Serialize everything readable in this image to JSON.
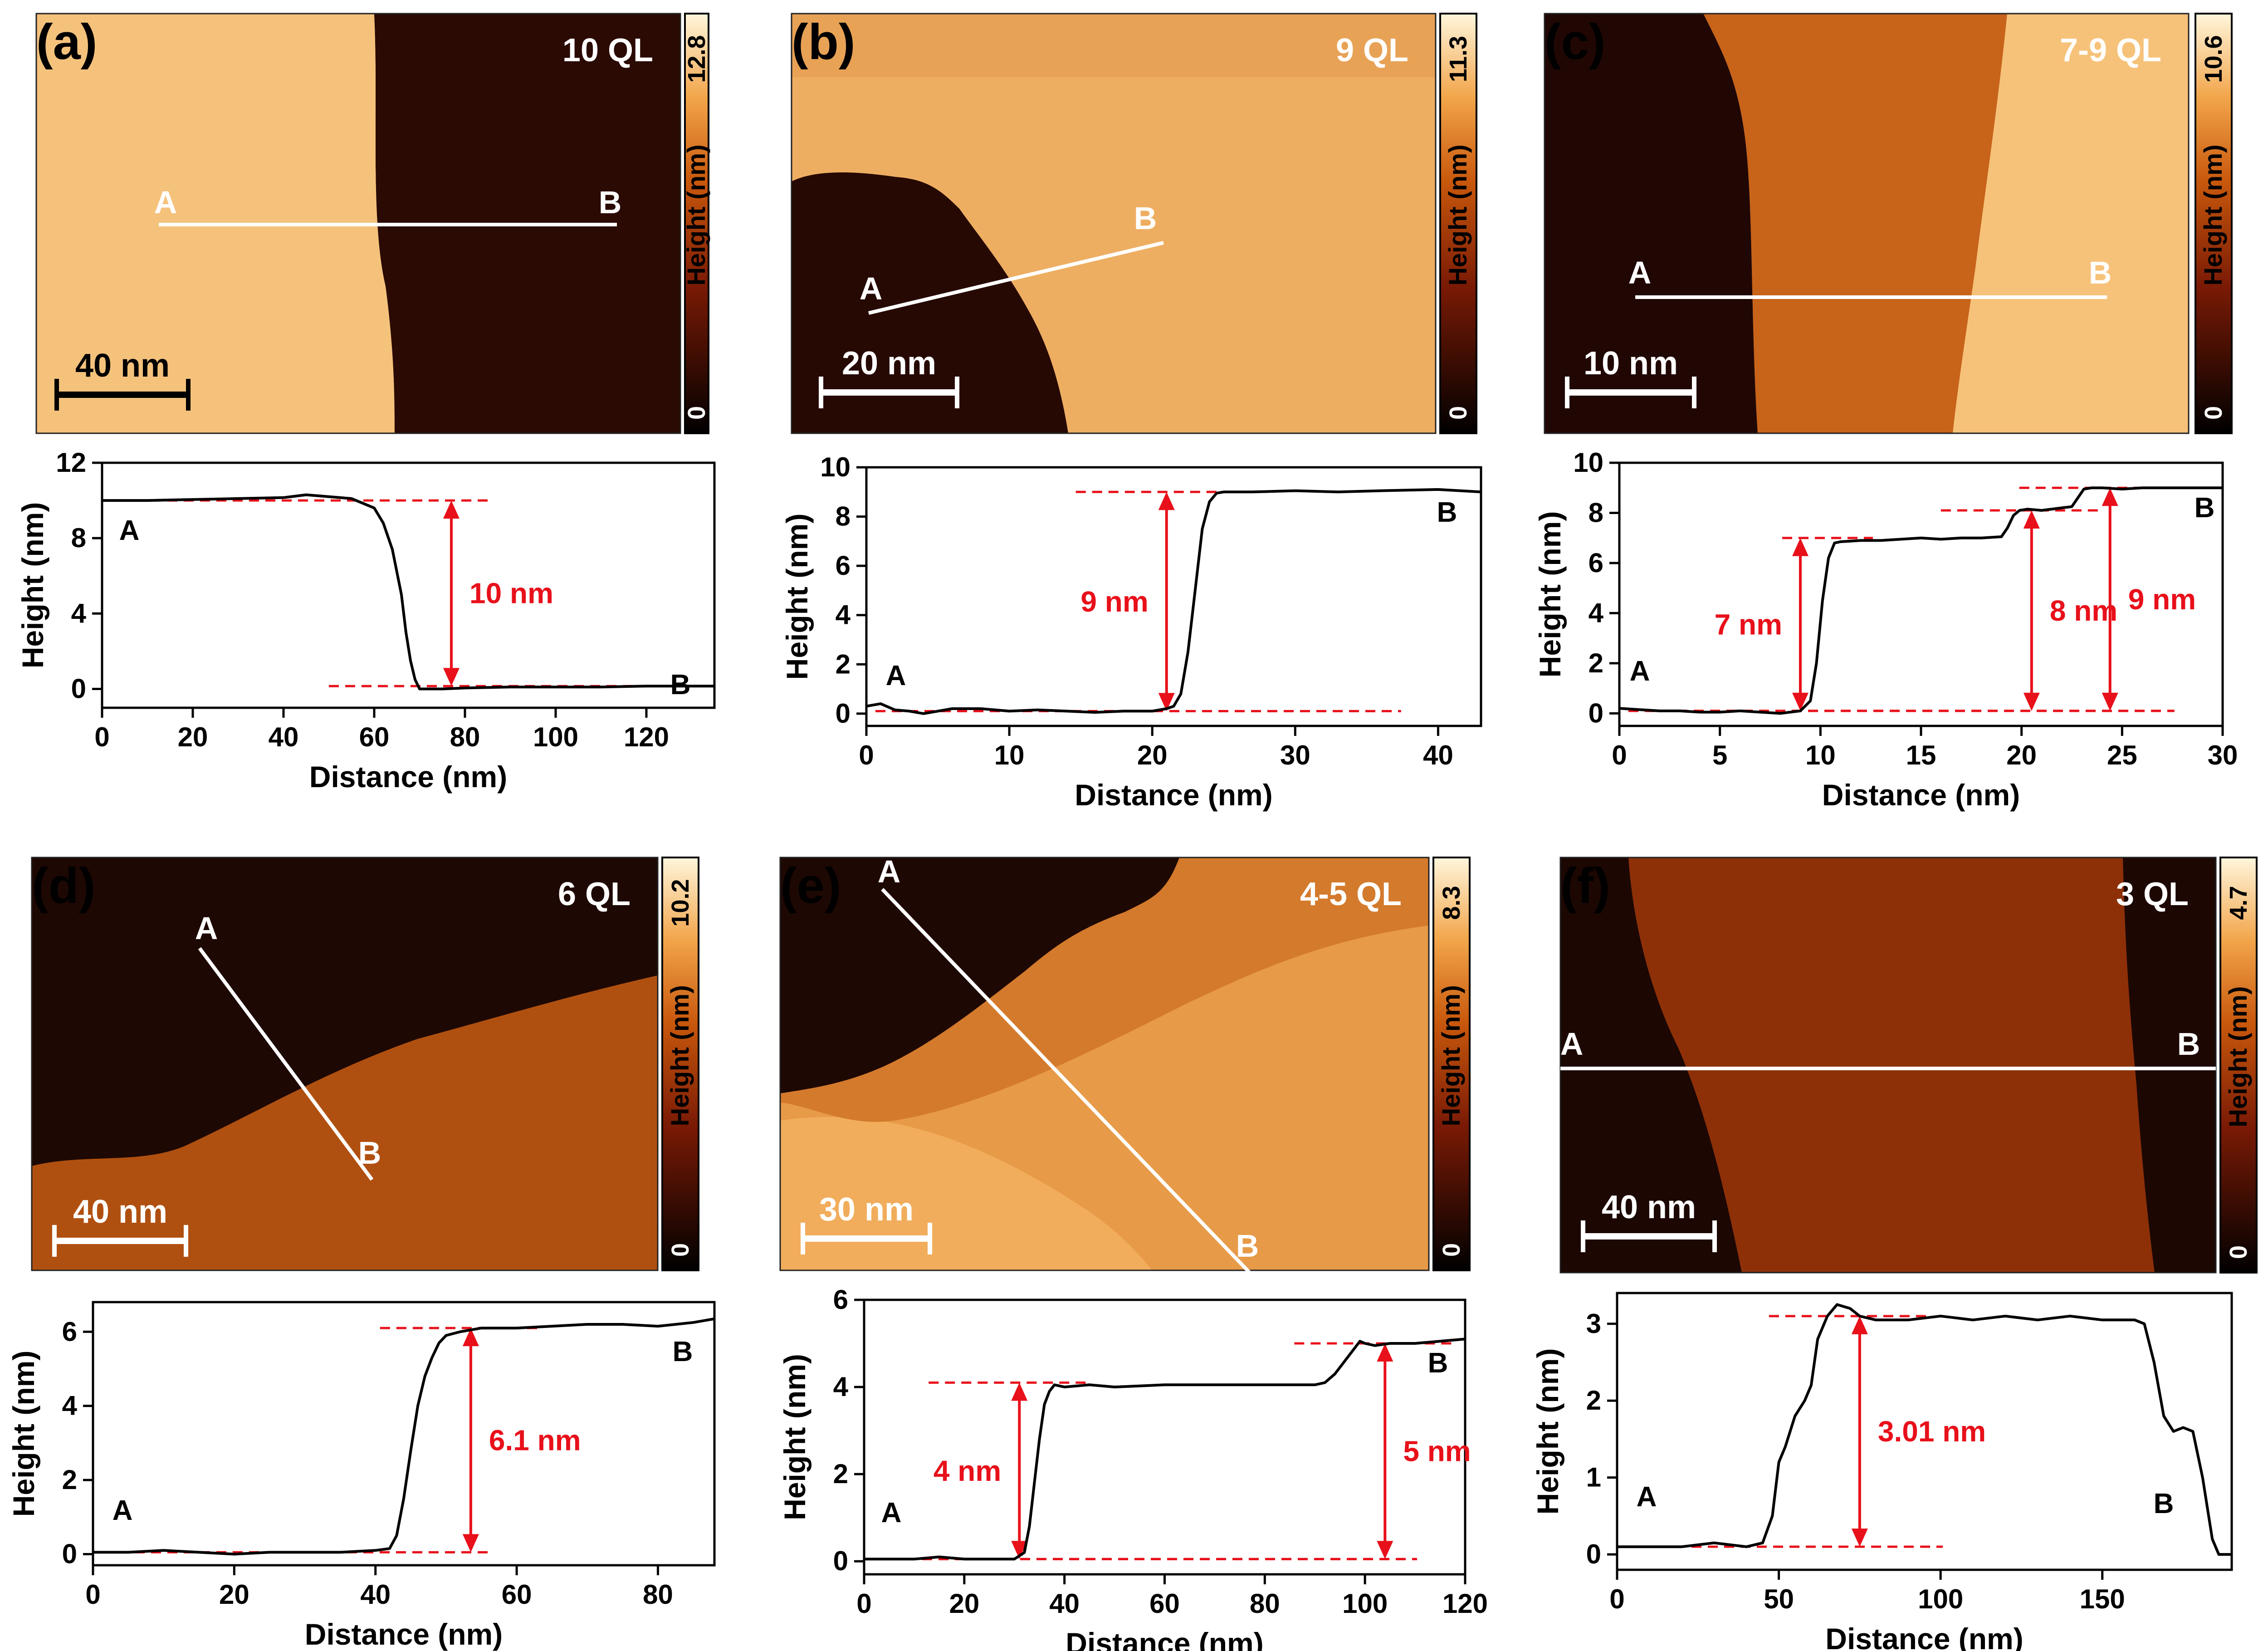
{
  "panels": [
    {
      "id": "a",
      "label": "(a)",
      "title": "10 QL",
      "scale_max": "12.8",
      "scale_min": "0",
      "colorbar_label": "Height (nm)",
      "scalebar": "40 nm",
      "pointA": "A",
      "pointB": "B"
    },
    {
      "id": "b",
      "label": "(b)",
      "title": "9 QL",
      "scale_max": "11.3",
      "scale_min": "0",
      "colorbar_label": "Height (nm)",
      "scalebar": "20 nm",
      "pointA": "A",
      "pointB": "B"
    },
    {
      "id": "c",
      "label": "(c)",
      "title": "7-9 QL",
      "scale_max": "10.6",
      "scale_min": "0",
      "colorbar_label": "Height (nm)",
      "scalebar": "10 nm",
      "pointA": "A",
      "pointB": "B"
    },
    {
      "id": "d",
      "label": "(d)",
      "title": "6 QL",
      "scale_max": "10.2",
      "scale_min": "0",
      "colorbar_label": "Height (nm)",
      "scalebar": "40 nm",
      "pointA": "A",
      "pointB": "B"
    },
    {
      "id": "e",
      "label": "(e)",
      "title": "4-5 QL",
      "scale_max": "8.3",
      "scale_min": "0",
      "colorbar_label": "Height (nm)",
      "scalebar": "30 nm",
      "pointA": "A",
      "pointB": "B"
    },
    {
      "id": "f",
      "label": "(f)",
      "title": "3 QL",
      "scale_max": "4.7",
      "scale_min": "0",
      "colorbar_label": "Height (nm)",
      "scalebar": "40 nm",
      "pointA": "A",
      "pointB": "B"
    }
  ],
  "chart_data": [
    {
      "id": "a",
      "type": "line",
      "xlabel": "Distance (nm)",
      "ylabel": "Height (nm)",
      "xlim": [
        0,
        135
      ],
      "ylim": [
        -1,
        12
      ],
      "xticks": [
        0,
        20,
        40,
        60,
        80,
        100,
        120
      ],
      "yticks": [
        0,
        4,
        8,
        12
      ],
      "x": [
        0,
        10,
        20,
        30,
        40,
        45,
        50,
        55,
        60,
        62,
        64,
        66,
        67,
        68,
        69,
        70,
        72,
        75,
        80,
        90,
        100,
        110,
        120,
        130,
        135
      ],
      "y": [
        10,
        10,
        10.05,
        10.1,
        10.15,
        10.3,
        10.2,
        10.1,
        9.6,
        8.8,
        7.4,
        5.0,
        3.0,
        1.5,
        0.5,
        0,
        0,
        0,
        0.05,
        0.1,
        0.1,
        0.1,
        0.15,
        0.15,
        0.15
      ],
      "start_label": "A",
      "end_label": "B",
      "annotations": [
        {
          "text": "10 nm",
          "x": 77,
          "y_low": 0.15,
          "y_high": 10
        }
      ]
    },
    {
      "id": "b",
      "type": "line",
      "xlabel": "Distance (nm)",
      "ylabel": "Height (nm)",
      "xlim": [
        0,
        43
      ],
      "ylim": [
        -0.5,
        10
      ],
      "xticks": [
        0,
        10,
        20,
        30,
        40
      ],
      "yticks": [
        0,
        2,
        4,
        6,
        8,
        10
      ],
      "x": [
        0,
        1,
        2,
        3,
        4,
        5,
        6,
        8,
        10,
        12,
        14,
        16,
        18,
        20,
        21,
        21.5,
        22,
        22.5,
        23,
        23.5,
        24,
        24.5,
        25,
        27,
        30,
        33,
        36,
        40,
        43
      ],
      "y": [
        0.3,
        0.4,
        0.15,
        0.1,
        0.0,
        0.1,
        0.2,
        0.2,
        0.1,
        0.15,
        0.1,
        0.05,
        0.1,
        0.1,
        0.2,
        0.3,
        0.8,
        2.5,
        5.0,
        7.5,
        8.6,
        8.95,
        9.0,
        9.0,
        9.05,
        9.0,
        9.05,
        9.1,
        9.0
      ],
      "start_label": "A",
      "end_label": "B",
      "annotations": [
        {
          "text": "9 nm",
          "x": 21,
          "y_low": 0.1,
          "y_high": 9
        }
      ]
    },
    {
      "id": "c",
      "type": "line",
      "xlabel": "Distance (nm)",
      "ylabel": "Height (nm)",
      "xlim": [
        0,
        30
      ],
      "ylim": [
        -0.5,
        10
      ],
      "xticks": [
        0,
        5,
        10,
        15,
        20,
        25,
        30
      ],
      "yticks": [
        0,
        2,
        4,
        6,
        8,
        10
      ],
      "x": [
        0,
        1,
        2,
        3,
        4,
        5,
        6,
        7,
        8,
        9,
        9.5,
        9.8,
        10.1,
        10.4,
        10.7,
        11,
        12,
        13,
        14,
        15,
        16,
        17,
        18,
        19,
        19.3,
        19.6,
        19.9,
        20.3,
        21,
        22,
        22.5,
        22.8,
        23.1,
        23.5,
        24,
        25,
        26,
        27,
        28,
        29,
        30
      ],
      "y": [
        0.2,
        0.15,
        0.1,
        0.1,
        0.05,
        0.05,
        0.1,
        0.05,
        0,
        0.1,
        0.5,
        2.0,
        4.5,
        6.2,
        6.8,
        6.85,
        6.9,
        6.9,
        6.95,
        7.0,
        6.95,
        7.0,
        7.0,
        7.05,
        7.4,
        7.9,
        8.1,
        8.15,
        8.1,
        8.2,
        8.25,
        8.6,
        8.95,
        9.0,
        9.0,
        8.95,
        9.0,
        9.0,
        9.0,
        9.0,
        9.0
      ],
      "start_label": "A",
      "end_label": "B",
      "annotations": [
        {
          "text": "7 nm",
          "x": 9,
          "y_low": 0.1,
          "y_high": 7
        },
        {
          "text": "8 nm",
          "x": 20.5,
          "y_low": 0.1,
          "y_high": 8.1
        },
        {
          "text": "9 nm",
          "x": 24.4,
          "y_low": 0.1,
          "y_high": 9
        }
      ]
    },
    {
      "id": "d",
      "type": "line",
      "xlabel": "Distance (nm)",
      "ylabel": "Height (nm)",
      "xlim": [
        0,
        88
      ],
      "ylim": [
        -0.3,
        6.8
      ],
      "xticks": [
        0,
        20,
        40,
        60,
        80
      ],
      "yticks": [
        0,
        2,
        4,
        6
      ],
      "x": [
        0,
        5,
        10,
        15,
        20,
        25,
        30,
        35,
        40,
        42,
        43,
        44,
        45,
        46,
        47,
        48,
        49,
        50,
        52,
        55,
        60,
        65,
        70,
        75,
        80,
        85,
        88
      ],
      "y": [
        0.05,
        0.05,
        0.1,
        0.05,
        0.0,
        0.05,
        0.05,
        0.05,
        0.1,
        0.15,
        0.5,
        1.5,
        2.8,
        4.0,
        4.8,
        5.3,
        5.7,
        5.9,
        6.0,
        6.1,
        6.1,
        6.15,
        6.2,
        6.2,
        6.15,
        6.25,
        6.35
      ],
      "start_label": "A",
      "end_label": "B",
      "annotations": [
        {
          "text": "6.1 nm",
          "x": 53.5,
          "y_low": 0.05,
          "y_high": 6.1
        }
      ]
    },
    {
      "id": "e",
      "type": "line",
      "xlabel": "Distance (nm)",
      "ylabel": "Height (nm)",
      "xlim": [
        0,
        120
      ],
      "ylim": [
        -0.3,
        6
      ],
      "xticks": [
        0,
        20,
        40,
        60,
        80,
        100,
        120
      ],
      "yticks": [
        0,
        2,
        4,
        6
      ],
      "x": [
        0,
        5,
        10,
        15,
        20,
        25,
        30,
        32,
        33,
        34,
        35,
        36,
        37,
        38,
        40,
        45,
        50,
        60,
        70,
        80,
        90,
        92,
        94,
        96,
        98,
        99,
        100,
        102,
        105,
        110,
        115,
        120
      ],
      "y": [
        0.05,
        0.05,
        0.05,
        0.1,
        0.05,
        0.05,
        0.05,
        0.2,
        0.8,
        1.8,
        2.8,
        3.6,
        3.9,
        4.05,
        4.0,
        4.05,
        4.0,
        4.05,
        4.05,
        4.05,
        4.05,
        4.1,
        4.3,
        4.6,
        4.9,
        5.05,
        5.0,
        4.95,
        5.0,
        5.0,
        5.05,
        5.1
      ],
      "start_label": "A",
      "end_label": "B",
      "annotations": [
        {
          "text": "4 nm",
          "x": 31,
          "y_low": 0.05,
          "y_high": 4.1
        },
        {
          "text": "5 nm",
          "x": 104,
          "y_low": 0.05,
          "y_high": 5
        }
      ]
    },
    {
      "id": "f",
      "type": "line",
      "xlabel": "Distance (nm)",
      "ylabel": "Height (nm)",
      "xlim": [
        0,
        190
      ],
      "ylim": [
        -0.2,
        3.4
      ],
      "xticks": [
        0,
        50,
        100,
        150
      ],
      "yticks": [
        0,
        1,
        2,
        3
      ],
      "x": [
        0,
        10,
        20,
        30,
        40,
        45,
        48,
        50,
        52,
        55,
        58,
        60,
        62,
        65,
        68,
        72,
        75,
        80,
        90,
        100,
        110,
        120,
        130,
        140,
        150,
        160,
        163,
        166,
        169,
        172,
        175,
        178,
        181,
        184,
        186,
        188,
        190
      ],
      "y": [
        0.1,
        0.1,
        0.1,
        0.15,
        0.1,
        0.15,
        0.5,
        1.2,
        1.4,
        1.8,
        2.0,
        2.2,
        2.8,
        3.1,
        3.25,
        3.2,
        3.1,
        3.05,
        3.05,
        3.1,
        3.05,
        3.1,
        3.05,
        3.1,
        3.05,
        3.05,
        3.0,
        2.5,
        1.8,
        1.6,
        1.65,
        1.6,
        1.0,
        0.2,
        0.0,
        0.0,
        0.0
      ],
      "start_label": "A",
      "end_label": "B",
      "annotations": [
        {
          "text": "3.01 nm",
          "x": 75,
          "y_low": 0.1,
          "y_high": 3.1
        }
      ]
    }
  ],
  "colors": {
    "annotation": "#e8101a",
    "axis": "#000000",
    "trace": "#000000",
    "line": "#ffffff"
  }
}
